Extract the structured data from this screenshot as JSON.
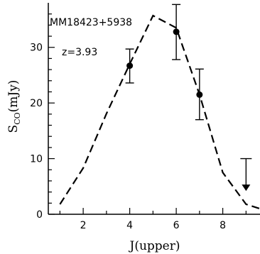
{
  "chart_data": {
    "type": "scatter",
    "annotations": [
      "MM18423+5938",
      "z=3.93"
    ],
    "xlabel": "J(upper)",
    "ylabel_main": "S",
    "ylabel_sub": "CO",
    "ylabel_unit": "(mJy)",
    "xlim": [
      0.5,
      9.6
    ],
    "ylim": [
      0,
      38
    ],
    "xticks": [
      2,
      4,
      6,
      8
    ],
    "yticks": [
      0,
      10,
      20,
      30
    ],
    "grid": false,
    "series": [
      {
        "kind": "errorbar",
        "x": [
          4,
          6,
          7
        ],
        "y": [
          26.7,
          32.8,
          21.5
        ],
        "yerr_low": [
          3.1,
          5.0,
          4.5
        ],
        "yerr_high": [
          3.0,
          4.9,
          4.6
        ]
      },
      {
        "kind": "model-dashed",
        "x": [
          1,
          2,
          3,
          4,
          5,
          6,
          7,
          8,
          9,
          9.6
        ],
        "y": [
          1.8,
          8.3,
          18.1,
          27.0,
          35.7,
          33.5,
          21.5,
          7.5,
          1.8,
          1.0
        ]
      },
      {
        "kind": "upper-limit",
        "x": [
          9
        ],
        "y": [
          10.0
        ],
        "arrow_to": 4.2
      }
    ]
  }
}
